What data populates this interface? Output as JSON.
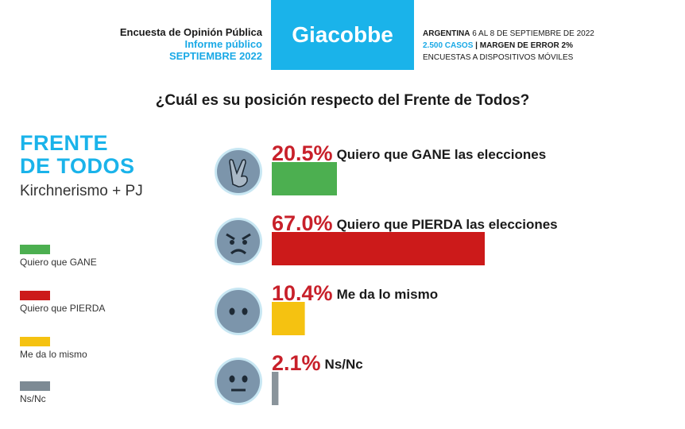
{
  "header": {
    "left_line1": "Encuesta de Opinión Pública",
    "left_line2": "Informe público",
    "left_line3": "SEPTIEMBRE 2022",
    "brand": "Giacobbe",
    "right_line1_bold": "ARGENTINA",
    "right_line1_rest": " 6 AL 8 DE SEPTIEMBRE DE 2022",
    "right_line2_a": "2.500 CASOS",
    "right_line2_sep": " | ",
    "right_line2_b": "MARGEN DE ERROR 2%",
    "right_line3": "ENCUESTAS A DISPOSITIVOS MÓVILES"
  },
  "question": "¿Cuál es su posición respecto del Frente de Todos?",
  "party": {
    "name_line1": "FRENTE",
    "name_line2": "DE TODOS",
    "subtitle": "Kirchnerismo + PJ"
  },
  "legend": [
    {
      "label": "Quiero que GANE",
      "color": "#4caf50"
    },
    {
      "label": "Quiero que PIERDA",
      "color": "#cc1a1a"
    },
    {
      "label": "Me da lo mismo",
      "color": "#f5c211"
    },
    {
      "label": "Ns/Nc",
      "color": "#7d8a94"
    }
  ],
  "chart_data": {
    "type": "bar",
    "orientation": "horizontal",
    "categories": [
      "Quiero que GANE las elecciones",
      "Quiero que PIERDA las elecciones",
      "Me da lo mismo",
      "Ns/Nc"
    ],
    "values": [
      20.5,
      67.0,
      10.4,
      2.1
    ],
    "value_labels": [
      "20.5%",
      "67.0%",
      "10.4%",
      "2.1%"
    ],
    "colors": [
      "#4caf50",
      "#cc1a1a",
      "#f5c211",
      "#8a949b"
    ],
    "icons": [
      "victory-hand-icon",
      "angry-face-icon",
      "neutral-face-icon",
      "expressionless-face-icon"
    ],
    "unit": "%"
  }
}
